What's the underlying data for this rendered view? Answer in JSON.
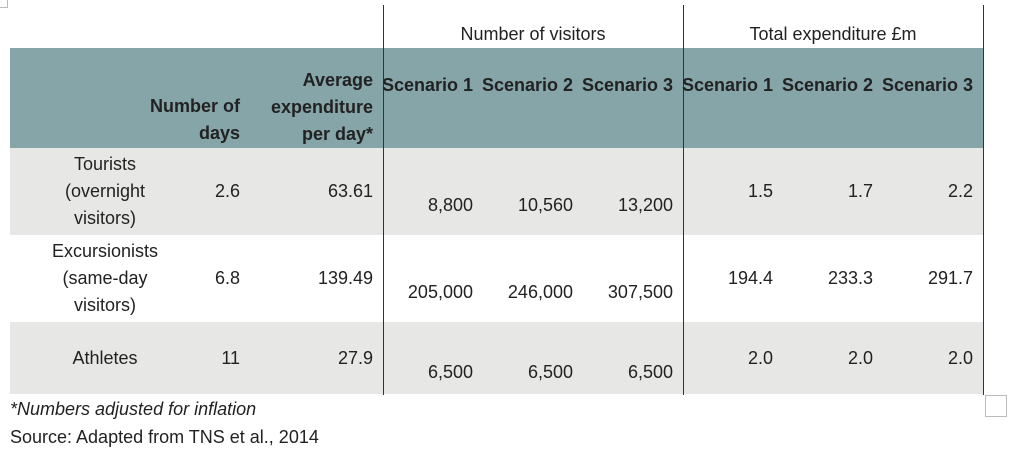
{
  "table": {
    "group_headers": [
      "Number of visitors",
      "Total expenditure £m"
    ],
    "columns": [
      "Number of days",
      "Average expenditure per day*",
      "Scenario 1",
      "Scenario 2",
      "Scenario 3",
      "Scenario 1",
      "Scenario 2",
      "Scenario 3"
    ],
    "rows": [
      [
        "Tourists (overnight visitors)",
        "2.6",
        "63.61",
        "8,800",
        "10,560",
        "13,200",
        "1.5",
        "1.7",
        "2.2"
      ],
      [
        "Excursionists (same-day visitors)",
        "6.8",
        "139.49",
        "205,000",
        "246,000",
        "307,500",
        "194.4",
        "233.3",
        "291.7"
      ],
      [
        "Athletes",
        "11",
        "27.9",
        "6,500",
        "6,500",
        "6,500",
        "2.0",
        "2.0",
        "2.0"
      ]
    ]
  },
  "notes": [
    "*Numbers adjusted for inflation",
    "Source: Adapted from TNS et al., 2014"
  ]
}
